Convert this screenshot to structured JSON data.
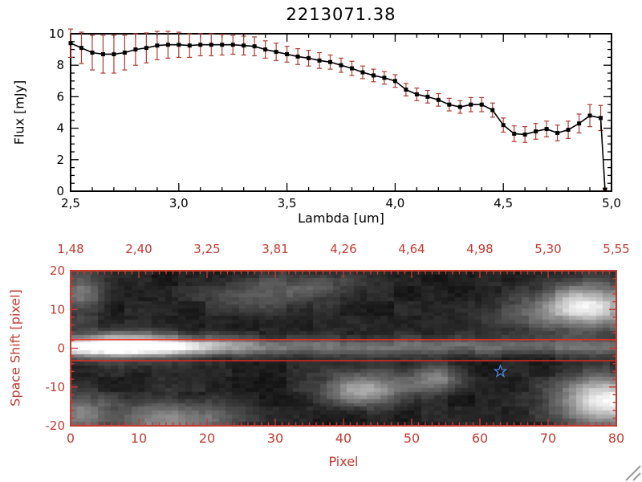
{
  "title": "2213071.38",
  "colors": {
    "accent_red": "#c43a30",
    "error_bar_red": "#b03a2e",
    "aperture_line_red": "#e8281e",
    "star_blue": "#4f86e0",
    "line_black": "#000000",
    "background": "#ffffff",
    "grip_gray": "#9a9a9a"
  },
  "chart_data": [
    {
      "type": "line",
      "title": "2213071.38",
      "xlabel": "Lambda [um]",
      "ylabel": "Flux [mJy]",
      "xlim": [
        2.5,
        5.0
      ],
      "ylim": [
        0,
        10
      ],
      "grid": false,
      "marker": "filled-square",
      "error_bars": true,
      "xticks": {
        "values": [
          2.5,
          3.0,
          3.5,
          4.0,
          4.5,
          5.0
        ],
        "labels": [
          "2,5",
          "3,0",
          "3,5",
          "4,0",
          "4,5",
          "5,0"
        ]
      },
      "yticks": {
        "values": [
          0,
          2,
          4,
          6,
          8,
          10
        ],
        "labels": [
          "0",
          "2",
          "4",
          "6",
          "8",
          "10"
        ]
      },
      "x": [
        2.5,
        2.55,
        2.6,
        2.65,
        2.7,
        2.75,
        2.8,
        2.85,
        2.9,
        2.95,
        3.0,
        3.05,
        3.1,
        3.15,
        3.2,
        3.25,
        3.3,
        3.35,
        3.4,
        3.45,
        3.5,
        3.55,
        3.6,
        3.65,
        3.7,
        3.75,
        3.8,
        3.85,
        3.9,
        3.95,
        4.0,
        4.05,
        4.1,
        4.15,
        4.2,
        4.25,
        4.3,
        4.35,
        4.4,
        4.45,
        4.5,
        4.55,
        4.6,
        4.65,
        4.7,
        4.75,
        4.8,
        4.85,
        4.9,
        4.95,
        4.97
      ],
      "y": [
        9.4,
        9.1,
        8.8,
        8.7,
        8.7,
        8.8,
        9.0,
        9.1,
        9.25,
        9.3,
        9.3,
        9.25,
        9.3,
        9.3,
        9.3,
        9.3,
        9.25,
        9.2,
        9.0,
        8.85,
        8.7,
        8.55,
        8.45,
        8.3,
        8.2,
        8.0,
        7.8,
        7.55,
        7.35,
        7.2,
        7.0,
        6.45,
        6.15,
        6.0,
        5.8,
        5.5,
        5.35,
        5.5,
        5.5,
        5.15,
        4.2,
        3.65,
        3.6,
        3.8,
        3.95,
        3.7,
        3.9,
        4.3,
        4.8,
        4.65,
        0.1
      ],
      "yerr": [
        0.9,
        1.0,
        1.1,
        1.2,
        1.2,
        1.1,
        1.0,
        0.95,
        0.9,
        0.85,
        0.8,
        0.75,
        0.7,
        0.7,
        0.65,
        0.6,
        0.6,
        0.6,
        0.55,
        0.55,
        0.5,
        0.5,
        0.5,
        0.5,
        0.45,
        0.45,
        0.45,
        0.4,
        0.4,
        0.4,
        0.4,
        0.4,
        0.4,
        0.4,
        0.4,
        0.4,
        0.4,
        0.45,
        0.45,
        0.45,
        0.45,
        0.5,
        0.5,
        0.5,
        0.5,
        0.5,
        0.55,
        0.6,
        0.7,
        0.8,
        0.1
      ]
    },
    {
      "type": "heatmap",
      "xlabel": "Pixel",
      "ylabel": "Space Shift [pixel]",
      "xlim": [
        0,
        80
      ],
      "ylim": [
        -20,
        20
      ],
      "xticks": {
        "values": [
          0,
          10,
          20,
          30,
          40,
          50,
          60,
          70,
          80
        ],
        "labels": [
          "0",
          "10",
          "20",
          "30",
          "40",
          "50",
          "60",
          "70",
          "80"
        ]
      },
      "yticks": {
        "values": [
          -20,
          -10,
          0,
          10,
          20
        ],
        "labels": [
          "-20",
          "-10",
          "0",
          "10",
          "20"
        ]
      },
      "top_axis_labels": [
        "1,48",
        "2,40",
        "3,25",
        "3,81",
        "4,26",
        "4,64",
        "4,98",
        "5,30",
        "5,55"
      ],
      "aperture_lines_y": [
        2.2,
        -3.2
      ],
      "star_marker": {
        "x": 63,
        "y": -6
      },
      "trace": {
        "center": 0.5,
        "sigma": 1.6,
        "base_amp": 0.3,
        "peak_amp": 0.68,
        "peak_x": 8,
        "peak_sigma": 10,
        "halo_amp": 0.3,
        "halo_sx": 6,
        "halo_sy": 3.5
      },
      "noise": {
        "seed": 42,
        "coarse_amp": 0.09,
        "fine_amp": 0.06,
        "base": 0.05
      },
      "blobs": [
        {
          "x": 76,
          "y": 11,
          "sx": 5,
          "sy": 4,
          "a": 0.8
        },
        {
          "x": 79,
          "y": -14,
          "sx": 5,
          "sy": 4.5,
          "a": 0.85
        },
        {
          "x": 43,
          "y": -11,
          "sx": 4.5,
          "sy": 3,
          "a": 0.55
        },
        {
          "x": 54,
          "y": -8,
          "sx": 3,
          "sy": 2.5,
          "a": 0.35
        },
        {
          "x": 15,
          "y": -19,
          "sx": 6,
          "sy": 3.5,
          "a": 0.45
        },
        {
          "x": 1,
          "y": -17,
          "sx": 3,
          "sy": 4,
          "a": 0.35
        },
        {
          "x": 27,
          "y": 14,
          "sx": 6,
          "sy": 3,
          "a": 0.22
        },
        {
          "x": 1,
          "y": 15,
          "sx": 2.5,
          "sy": 5,
          "a": 0.3
        },
        {
          "x": 36,
          "y": 17,
          "sx": 5,
          "sy": 2.5,
          "a": 0.2
        },
        {
          "x": 65,
          "y": 8,
          "sx": 4,
          "sy": 3,
          "a": 0.18
        }
      ]
    }
  ]
}
